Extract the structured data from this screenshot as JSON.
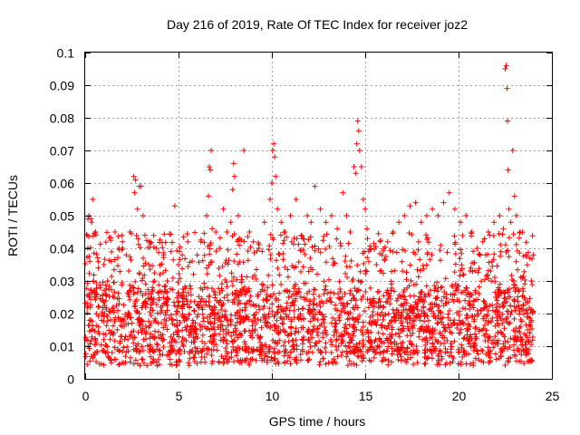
{
  "chart_data": {
    "type": "scatter",
    "title": "Day 216 of 2019, Rate Of TEC Index for receiver joz2",
    "xlabel": "GPS time / hours",
    "ylabel": "ROTI / TECUs",
    "xlim": [
      0,
      25
    ],
    "ylim": [
      0,
      0.1
    ],
    "x_ticks": [
      0,
      5,
      10,
      15,
      20,
      25
    ],
    "x_tick_labels": [
      "0",
      "5",
      "10",
      "15",
      "20",
      "25"
    ],
    "y_ticks": [
      0,
      0.01,
      0.02,
      0.03,
      0.04,
      0.05,
      0.06,
      0.07,
      0.08,
      0.09,
      0.1
    ],
    "y_tick_labels": [
      "0",
      "0.01",
      "0.02",
      "0.03",
      "0.04",
      "0.05",
      "0.06",
      "0.07",
      "0.08",
      "0.09",
      "0.1"
    ],
    "grid": true,
    "marker": "+",
    "marker_color": "#ff0000",
    "series": [
      {
        "name": "ROTI",
        "color": "#ff0000",
        "points": [
          [
            0.05,
            0.012
          ],
          [
            0.1,
            0.044
          ],
          [
            0.15,
            0.049
          ],
          [
            0.2,
            0.05
          ],
          [
            0.25,
            0.036
          ],
          [
            0.3,
            0.049
          ],
          [
            0.35,
            0.048
          ],
          [
            0.4,
            0.055
          ],
          [
            0.45,
            0.03
          ],
          [
            0.5,
            0.025
          ],
          [
            0.6,
            0.02
          ],
          [
            0.7,
            0.034
          ],
          [
            0.8,
            0.028
          ],
          [
            1.0,
            0.035
          ],
          [
            1.2,
            0.03
          ],
          [
            1.4,
            0.036
          ],
          [
            1.6,
            0.045
          ],
          [
            1.8,
            0.04
          ],
          [
            2.0,
            0.042
          ],
          [
            2.2,
            0.038
          ],
          [
            2.4,
            0.045
          ],
          [
            2.6,
            0.062
          ],
          [
            2.65,
            0.057
          ],
          [
            2.7,
            0.061
          ],
          [
            2.8,
            0.052
          ],
          [
            2.9,
            0.059
          ],
          [
            3.0,
            0.059
          ],
          [
            3.1,
            0.05
          ],
          [
            3.2,
            0.044
          ],
          [
            3.4,
            0.035
          ],
          [
            3.6,
            0.028
          ],
          [
            3.8,
            0.04
          ],
          [
            4.0,
            0.032
          ],
          [
            4.2,
            0.038
          ],
          [
            4.4,
            0.03
          ],
          [
            4.6,
            0.039
          ],
          [
            4.8,
            0.053
          ],
          [
            5.0,
            0.035
          ],
          [
            5.2,
            0.038
          ],
          [
            5.5,
            0.042
          ],
          [
            5.8,
            0.032
          ],
          [
            6.0,
            0.038
          ],
          [
            6.2,
            0.042
          ],
          [
            6.5,
            0.05
          ],
          [
            6.6,
            0.056
          ],
          [
            6.65,
            0.065
          ],
          [
            6.7,
            0.064
          ],
          [
            6.75,
            0.07
          ],
          [
            6.8,
            0.046
          ],
          [
            7.0,
            0.045
          ],
          [
            7.2,
            0.04
          ],
          [
            7.4,
            0.052
          ],
          [
            7.6,
            0.045
          ],
          [
            7.8,
            0.048
          ],
          [
            7.9,
            0.058
          ],
          [
            7.95,
            0.066
          ],
          [
            8.0,
            0.062
          ],
          [
            8.2,
            0.05
          ],
          [
            8.5,
            0.07
          ],
          [
            8.8,
            0.045
          ],
          [
            9.0,
            0.042
          ],
          [
            9.3,
            0.04
          ],
          [
            9.6,
            0.048
          ],
          [
            9.9,
            0.055
          ],
          [
            10.0,
            0.06
          ],
          [
            10.05,
            0.07
          ],
          [
            10.1,
            0.072
          ],
          [
            10.15,
            0.068
          ],
          [
            10.2,
            0.062
          ],
          [
            10.3,
            0.052
          ],
          [
            10.5,
            0.048
          ],
          [
            10.7,
            0.045
          ],
          [
            11.0,
            0.05
          ],
          [
            11.3,
            0.055
          ],
          [
            11.6,
            0.044
          ],
          [
            11.9,
            0.05
          ],
          [
            12.1,
            0.048
          ],
          [
            12.3,
            0.059
          ],
          [
            12.6,
            0.052
          ],
          [
            12.9,
            0.048
          ],
          [
            13.2,
            0.05
          ],
          [
            13.5,
            0.046
          ],
          [
            13.8,
            0.057
          ],
          [
            14.0,
            0.05
          ],
          [
            14.2,
            0.045
          ],
          [
            14.4,
            0.065
          ],
          [
            14.5,
            0.063
          ],
          [
            14.55,
            0.072
          ],
          [
            14.6,
            0.079
          ],
          [
            14.65,
            0.076
          ],
          [
            14.7,
            0.07
          ],
          [
            14.8,
            0.065
          ],
          [
            14.9,
            0.055
          ],
          [
            15.0,
            0.052
          ],
          [
            15.1,
            0.046
          ],
          [
            15.3,
            0.04
          ],
          [
            15.6,
            0.035
          ],
          [
            15.9,
            0.038
          ],
          [
            16.2,
            0.042
          ],
          [
            16.5,
            0.045
          ],
          [
            16.8,
            0.048
          ],
          [
            17.1,
            0.05
          ],
          [
            17.4,
            0.053
          ],
          [
            17.7,
            0.054
          ],
          [
            18.0,
            0.048
          ],
          [
            18.3,
            0.05
          ],
          [
            18.6,
            0.052
          ],
          [
            18.9,
            0.05
          ],
          [
            19.2,
            0.054
          ],
          [
            19.5,
            0.057
          ],
          [
            19.8,
            0.052
          ],
          [
            20.1,
            0.048
          ],
          [
            20.4,
            0.05
          ],
          [
            20.7,
            0.045
          ],
          [
            21.0,
            0.04
          ],
          [
            21.3,
            0.042
          ],
          [
            21.6,
            0.045
          ],
          [
            21.9,
            0.048
          ],
          [
            22.2,
            0.05
          ],
          [
            22.4,
            0.046
          ],
          [
            22.5,
            0.095
          ],
          [
            22.55,
            0.096
          ],
          [
            22.6,
            0.089
          ],
          [
            22.62,
            0.079
          ],
          [
            22.65,
            0.064
          ],
          [
            22.7,
            0.052
          ],
          [
            22.8,
            0.048
          ],
          [
            22.9,
            0.07
          ],
          [
            23.0,
            0.056
          ],
          [
            23.1,
            0.05
          ],
          [
            23.3,
            0.045
          ],
          [
            23.6,
            0.038
          ],
          [
            23.8,
            0.037
          ],
          [
            23.9,
            0.03
          ]
        ]
      }
    ],
    "dense_band": {
      "x_range": [
        0,
        24
      ],
      "y_floor": [
        0.004,
        0.009
      ],
      "y_core": [
        0.008,
        0.028
      ],
      "y_upper": [
        0.028,
        0.045
      ],
      "count": 2600
    }
  }
}
